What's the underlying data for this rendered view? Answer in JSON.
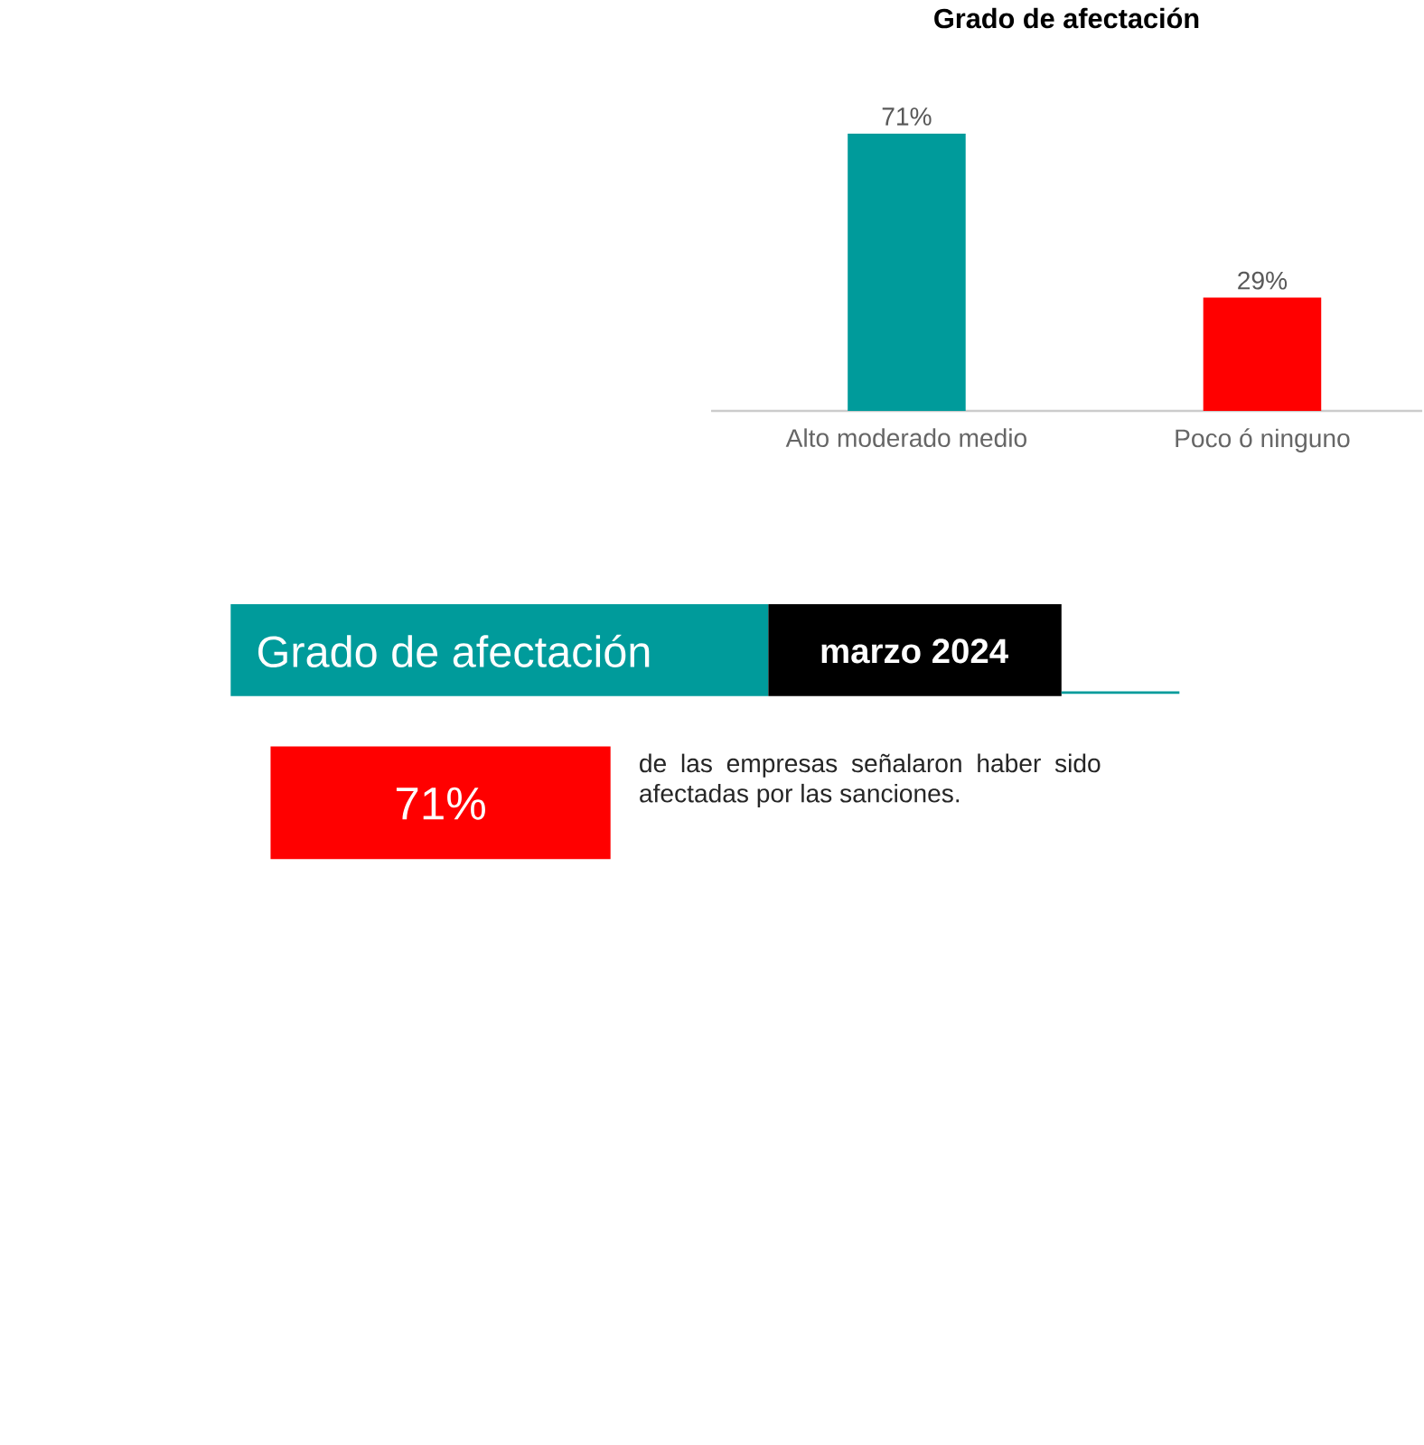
{
  "chart_data": {
    "type": "bar",
    "title": "Grado de afectación",
    "categories": [
      "Alto moderado medio",
      "Poco  ó ninguno"
    ],
    "values": [
      71,
      29
    ],
    "colors": [
      "#009b9b",
      "#ff0000"
    ],
    "value_labels": [
      "71%",
      "29%"
    ],
    "annotations": [
      "Grado de afectación",
      "marzo 2024",
      "71%",
      "de las empresas señalaron haber sido afectadas por las sanciones."
    ]
  }
}
